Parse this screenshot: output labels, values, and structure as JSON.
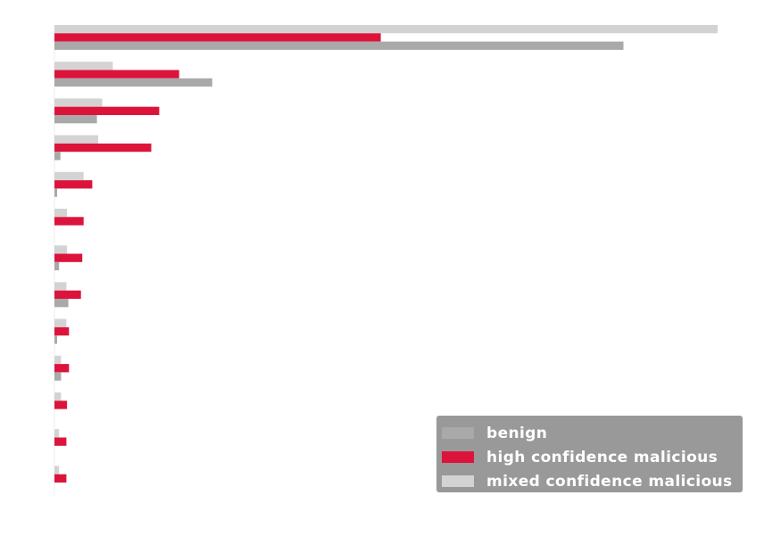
{
  "chart_data": {
    "type": "bar",
    "orientation": "horizontal",
    "categories": [
      "",
      "",
      "",
      "",
      "",
      "",
      "",
      "",
      "",
      "",
      "",
      "",
      ""
    ],
    "series": [
      {
        "name": "mixed confidence malicious",
        "color": "#d3d3d3",
        "values": [
          1000,
          88,
          72,
          66,
          44,
          19,
          19,
          18,
          18,
          10,
          10,
          7,
          7
        ]
      },
      {
        "name": "high confidence malicious",
        "color": "#dc143c",
        "values": [
          492,
          188,
          158,
          146,
          57,
          44,
          42,
          40,
          22,
          22,
          19,
          18,
          18
        ]
      },
      {
        "name": "benign",
        "color": "#a9a9a9",
        "values": [
          858,
          238,
          64,
          9,
          4,
          0,
          7,
          21,
          4,
          10,
          0,
          0,
          0
        ]
      }
    ],
    "xlim": [
      0,
      1000
    ],
    "grid": false,
    "axes_visible": false,
    "legend": {
      "placement": "lower-right",
      "background": "#999999",
      "order": [
        "benign",
        "high confidence malicious",
        "mixed confidence malicious"
      ]
    }
  }
}
